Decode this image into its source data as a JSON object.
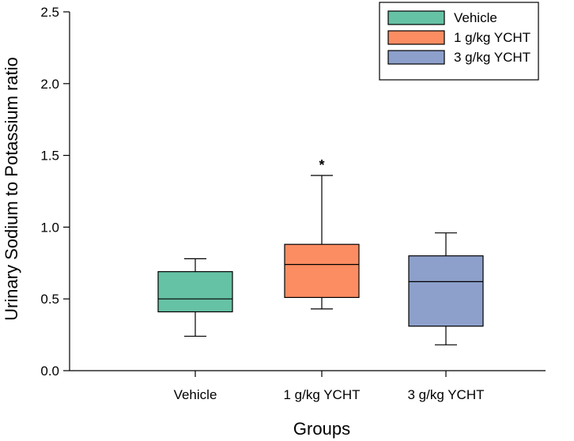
{
  "chart_data": {
    "type": "box",
    "title": "",
    "xlabel": "Groups",
    "ylabel": "Urinary Sodium to Potassium ratio",
    "ylim": [
      0.0,
      2.5
    ],
    "yticks": [
      0.0,
      0.5,
      1.0,
      1.5,
      2.0,
      2.5
    ],
    "ytick_labels": [
      "0.0",
      "0.5",
      "1.0",
      "1.5",
      "2.0",
      "2.5"
    ],
    "categories": [
      "Vehicle",
      "1 g/kg YCHT",
      "3 g/kg YCHT"
    ],
    "series": [
      {
        "name": "Vehicle",
        "color": "#66c2a5",
        "whisker_low": 0.24,
        "q1": 0.41,
        "median": 0.5,
        "q3": 0.69,
        "whisker_high": 0.78,
        "annotation": ""
      },
      {
        "name": "1 g/kg YCHT",
        "color": "#fc8d62",
        "whisker_low": 0.43,
        "q1": 0.51,
        "median": 0.74,
        "q3": 0.88,
        "whisker_high": 1.36,
        "annotation": "*"
      },
      {
        "name": "3 g/kg YCHT",
        "color": "#8da0cb",
        "whisker_low": 0.18,
        "q1": 0.31,
        "median": 0.62,
        "q3": 0.8,
        "whisker_high": 0.96,
        "annotation": ""
      }
    ],
    "legend": {
      "position": "top-right",
      "entries": [
        "Vehicle",
        "1 g/kg YCHT",
        "3 g/kg YCHT"
      ]
    },
    "grid": false
  }
}
